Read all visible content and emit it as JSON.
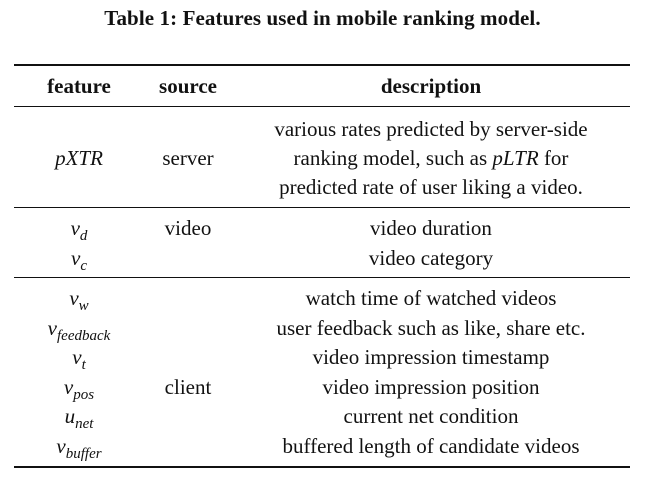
{
  "caption": "Table 1: Features used in mobile ranking model.",
  "headers": {
    "feature": "feature",
    "source": "source",
    "description": "description"
  },
  "group1": {
    "feature": "pXTR",
    "source": "server",
    "desc_line1": "various rates predicted by server-side",
    "desc_line2_pre": "ranking model, such as ",
    "desc_line2_math": "pLTR",
    "desc_line2_post": " for",
    "desc_line3": "predicted rate of user liking a video."
  },
  "group2": {
    "source": "video",
    "rows": [
      {
        "base": "v",
        "sub": "d",
        "desc": "video duration"
      },
      {
        "base": "v",
        "sub": "c",
        "desc": "video category"
      }
    ]
  },
  "group3": {
    "source": "client",
    "rows": [
      {
        "base": "v",
        "sub": "w",
        "desc": "watch time of watched videos"
      },
      {
        "base": "v",
        "sub": "feedback",
        "desc": "user feedback such as like, share etc."
      },
      {
        "base": "v",
        "sub": "t",
        "desc": "video impression timestamp"
      },
      {
        "base": "v",
        "sub": "pos",
        "desc": "video impression position"
      },
      {
        "base": "u",
        "sub": "net",
        "desc": "current net condition"
      },
      {
        "base": "v",
        "sub": "buffer",
        "desc": "buffered length of candidate videos"
      }
    ]
  }
}
